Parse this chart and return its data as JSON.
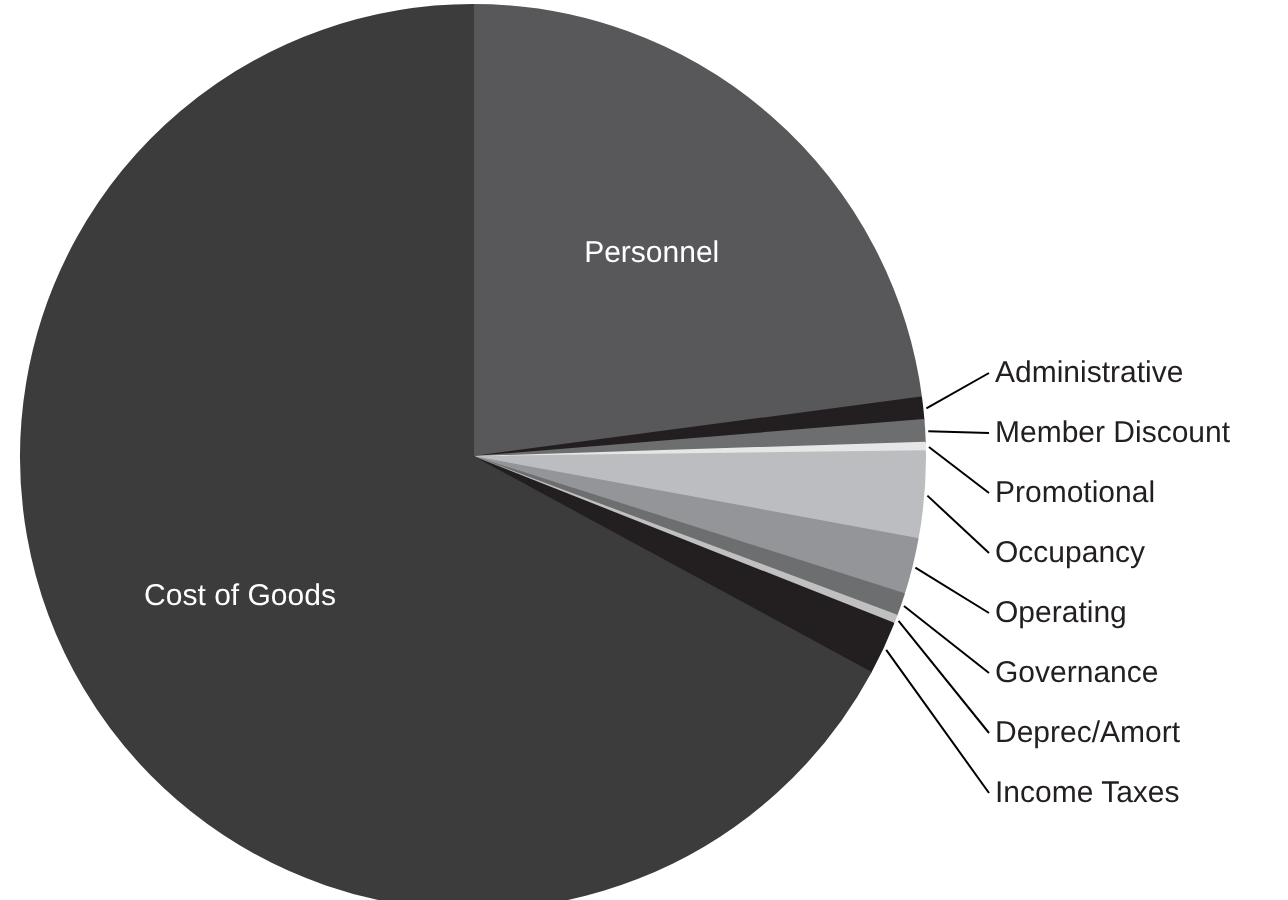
{
  "chart_data": {
    "type": "pie",
    "categories": [
      "Personnel",
      "Administrative",
      "Member Discount",
      "Promotional",
      "Occupancy",
      "Operating",
      "Governance",
      "Deprec/Amort",
      "Income Taxes",
      "Cost of Goods"
    ],
    "values": [
      22.9,
      0.8,
      0.8,
      0.3,
      3.1,
      2.0,
      0.8,
      0.3,
      1.9,
      67.1
    ],
    "colors": [
      "#58585a",
      "#231f20",
      "#6d6e70",
      "#e6e6e6",
      "#bcbdc0",
      "#939598",
      "#6d6e70",
      "#c0c0c0",
      "#231f20",
      "#3c3c3c"
    ]
  }
}
